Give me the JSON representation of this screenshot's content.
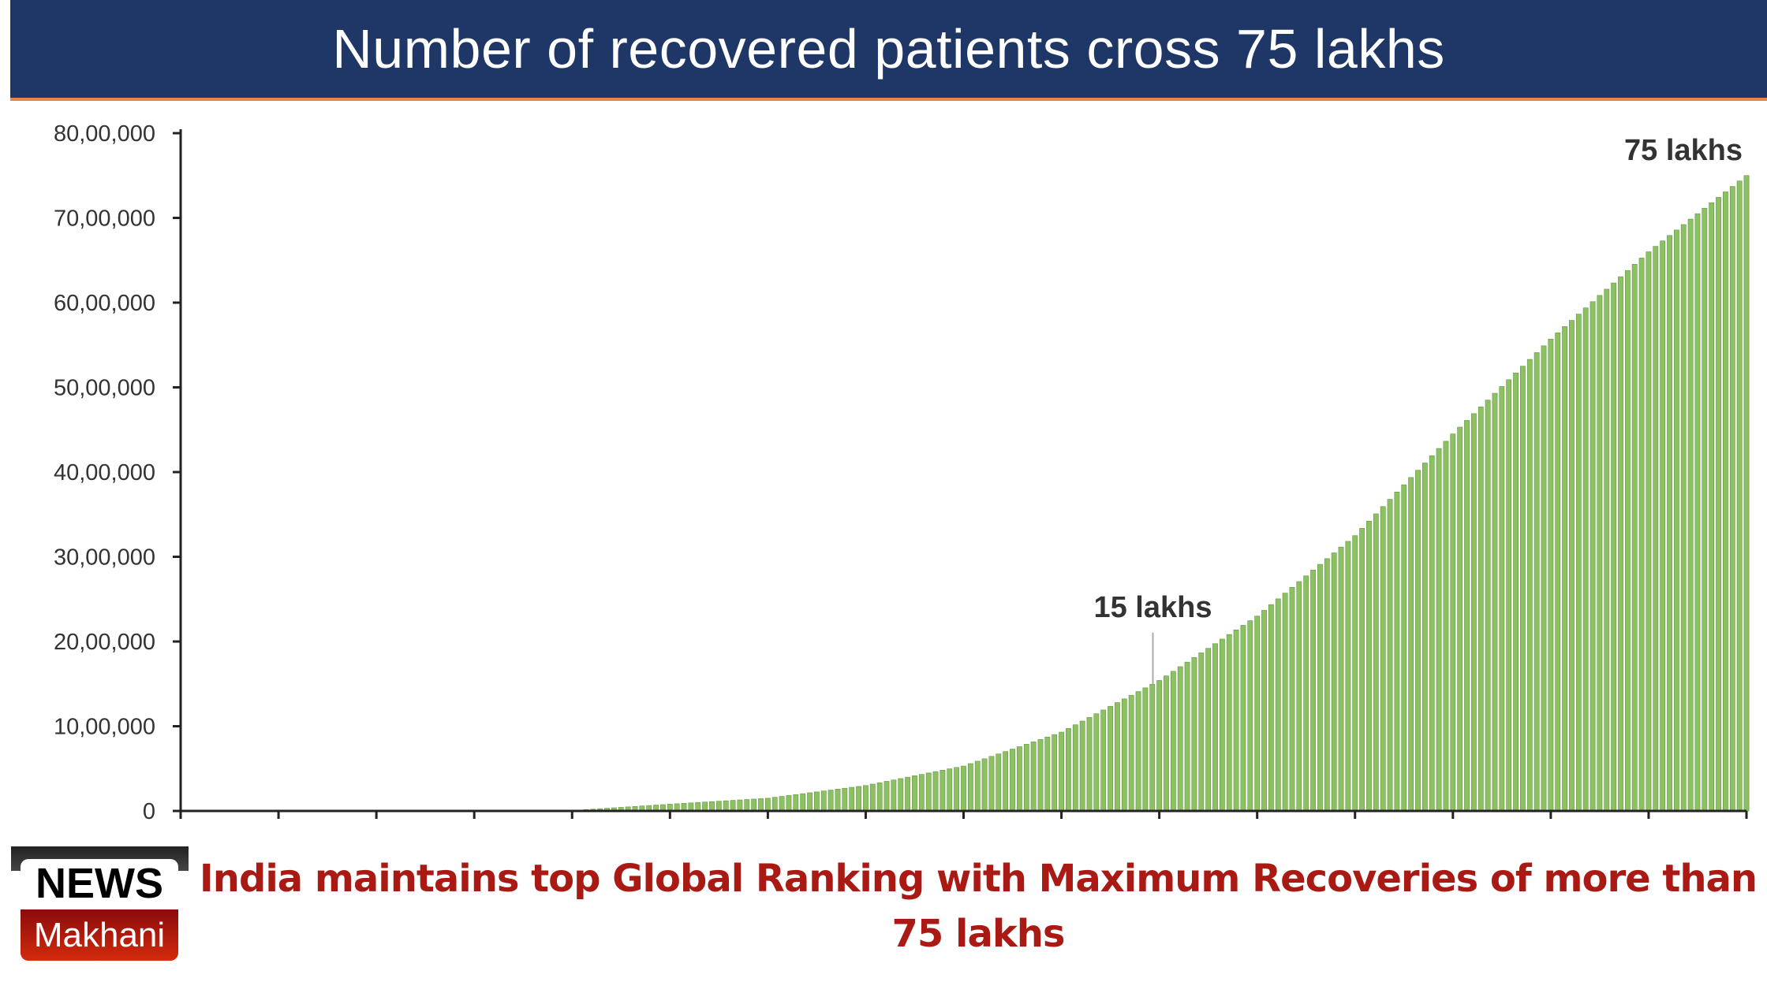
{
  "header": {
    "title": "Number of recovered patients cross 75 lakhs"
  },
  "chart_data": {
    "type": "bar",
    "title": "Number of recovered patients cross 75 lakhs",
    "xlabel": "",
    "ylabel": "",
    "ylim": [
      0,
      8000000
    ],
    "y_ticks": [
      "0",
      "10,00,000",
      "20,00,000",
      "30,00,000",
      "40,00,000",
      "50,00,000",
      "60,00,000",
      "70,00,000",
      "80,00,000"
    ],
    "y_tick_values": [
      0,
      1000000,
      2000000,
      3000000,
      4000000,
      5000000,
      6000000,
      7000000,
      8000000
    ],
    "x_tick_count": 17,
    "values_at_x_ticks": [
      0,
      0,
      0,
      2000,
      5000,
      80000,
      150000,
      300000,
      530000,
      930000,
      1540000,
      2300000,
      3250000,
      4450000,
      5570000,
      6600000,
      7500000
    ],
    "bar_color": "#8cc063",
    "grid": false,
    "annotations": [
      {
        "text": "15 lakhs",
        "value": 1500000
      },
      {
        "text": "75 lakhs",
        "value": 7500000
      }
    ]
  },
  "logo": {
    "line1": "NEWS",
    "line2": "Makhani"
  },
  "caption": "India maintains top Global Ranking with Maximum Recoveries of more than 75 lakhs"
}
